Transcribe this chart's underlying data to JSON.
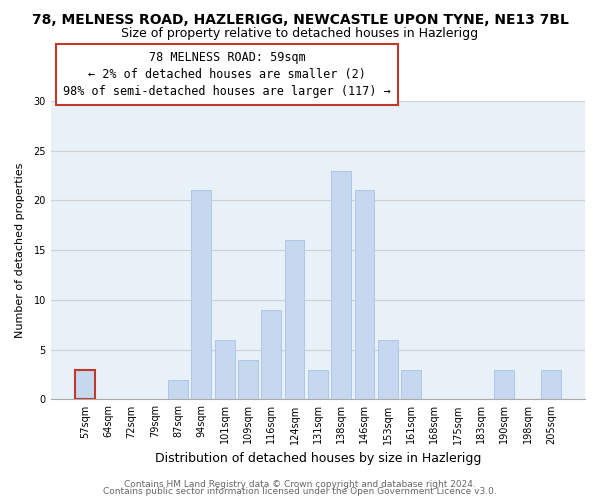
{
  "title": "78, MELNESS ROAD, HAZLERIGG, NEWCASTLE UPON TYNE, NE13 7BL",
  "subtitle": "Size of property relative to detached houses in Hazlerigg",
  "xlabel": "Distribution of detached houses by size in Hazlerigg",
  "ylabel": "Number of detached properties",
  "categories": [
    "57sqm",
    "64sqm",
    "72sqm",
    "79sqm",
    "87sqm",
    "94sqm",
    "101sqm",
    "109sqm",
    "116sqm",
    "124sqm",
    "131sqm",
    "138sqm",
    "146sqm",
    "153sqm",
    "161sqm",
    "168sqm",
    "175sqm",
    "183sqm",
    "190sqm",
    "198sqm",
    "205sqm"
  ],
  "values": [
    3,
    0,
    0,
    0,
    2,
    21,
    6,
    4,
    9,
    16,
    3,
    23,
    21,
    6,
    3,
    0,
    0,
    0,
    3,
    0,
    3
  ],
  "bar_color": "#c5d8f0",
  "bar_edge_color": "#aec6e8",
  "highlight_bar_index": 0,
  "highlight_bar_edge_color": "#c0392b",
  "annotation_box_text": "78 MELNESS ROAD: 59sqm\n← 2% of detached houses are smaller (2)\n98% of semi-detached houses are larger (117) →",
  "annotation_box_color": "#ffffff",
  "annotation_box_edge_color": "#c0392b",
  "ylim": [
    0,
    30
  ],
  "yticks": [
    0,
    5,
    10,
    15,
    20,
    25,
    30
  ],
  "grid_color": "#d0d0d0",
  "bg_color": "#e8f0f8",
  "footer_line1": "Contains HM Land Registry data © Crown copyright and database right 2024.",
  "footer_line2": "Contains public sector information licensed under the Open Government Licence v3.0.",
  "title_fontsize": 10,
  "subtitle_fontsize": 9,
  "xlabel_fontsize": 9,
  "ylabel_fontsize": 8,
  "tick_fontsize": 7,
  "annotation_fontsize": 8.5,
  "footer_fontsize": 6.5
}
